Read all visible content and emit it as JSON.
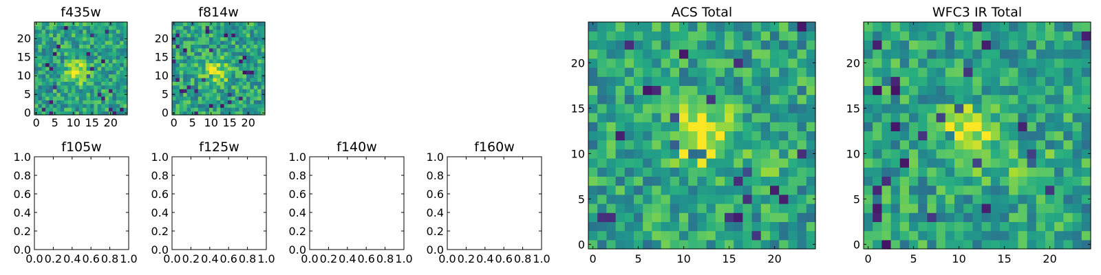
{
  "chart_data": [
    {
      "type": "heatmap",
      "title": "f435w",
      "xlabel": "",
      "ylabel": "",
      "xlim": [
        -0.5,
        24.5
      ],
      "ylim": [
        -0.5,
        24.5
      ],
      "xticks": [
        "0",
        "5",
        "10",
        "15",
        "20"
      ],
      "yticks": [
        "0",
        "5",
        "10",
        "15",
        "20"
      ],
      "grid_size": [
        25,
        25
      ],
      "colormap": "viridis",
      "feature": "bright source near x=11, y=11"
    },
    {
      "type": "heatmap",
      "title": "f814w",
      "xlabel": "",
      "ylabel": "",
      "xlim": [
        -0.5,
        24.5
      ],
      "ylim": [
        -0.5,
        24.5
      ],
      "xticks": [
        "0",
        "5",
        "10",
        "15",
        "20"
      ],
      "yticks": [
        "0",
        "5",
        "10",
        "15",
        "20"
      ],
      "grid_size": [
        25,
        25
      ],
      "colormap": "viridis",
      "feature": "bright source near x=11, y=11"
    },
    {
      "type": "heatmap",
      "title": "f105w",
      "empty": true,
      "xlim": [
        0,
        1
      ],
      "ylim": [
        0,
        1
      ],
      "xticks": [
        "0.0",
        "0.2",
        "0.4",
        "0.6",
        "0.8",
        "1.0"
      ],
      "yticks": [
        "0.0",
        "0.2",
        "0.4",
        "0.6",
        "0.8",
        "1.0"
      ]
    },
    {
      "type": "heatmap",
      "title": "f125w",
      "empty": true,
      "xlim": [
        0,
        1
      ],
      "ylim": [
        0,
        1
      ],
      "xticks": [
        "0.0",
        "0.2",
        "0.4",
        "0.6",
        "0.8",
        "1.0"
      ],
      "yticks": [
        "0.0",
        "0.2",
        "0.4",
        "0.6",
        "0.8",
        "1.0"
      ]
    },
    {
      "type": "heatmap",
      "title": "f140w",
      "empty": true,
      "xlim": [
        0,
        1
      ],
      "ylim": [
        0,
        1
      ],
      "xticks": [
        "0.0",
        "0.2",
        "0.4",
        "0.6",
        "0.8",
        "1.0"
      ],
      "yticks": [
        "0.0",
        "0.2",
        "0.4",
        "0.6",
        "0.8",
        "1.0"
      ]
    },
    {
      "type": "heatmap",
      "title": "f160w",
      "empty": true,
      "xlim": [
        0,
        1
      ],
      "ylim": [
        0,
        1
      ],
      "xticks": [
        "0.0",
        "0.2",
        "0.4",
        "0.6",
        "0.8",
        "1.0"
      ],
      "yticks": [
        "0.0",
        "0.2",
        "0.4",
        "0.6",
        "0.8",
        "1.0"
      ]
    },
    {
      "type": "heatmap",
      "title": "ACS Total",
      "xlabel": "",
      "ylabel": "",
      "xlim": [
        -0.5,
        24.5
      ],
      "ylim": [
        -0.5,
        24.5
      ],
      "xticks": [
        "0",
        "5",
        "10",
        "15",
        "20"
      ],
      "yticks": [
        "0",
        "5",
        "10",
        "15",
        "20"
      ],
      "grid_size": [
        25,
        25
      ],
      "colormap": "viridis",
      "feature": "bright source near x=12, y=12"
    },
    {
      "type": "heatmap",
      "title": "WFC3 IR Total",
      "xlabel": "",
      "ylabel": "",
      "xlim": [
        -0.5,
        24.5
      ],
      "ylim": [
        -0.5,
        24.5
      ],
      "xticks": [
        "0",
        "5",
        "10",
        "15",
        "20"
      ],
      "yticks": [
        "0",
        "5",
        "10",
        "15",
        "20"
      ],
      "grid_size": [
        25,
        25
      ],
      "colormap": "viridis",
      "feature": "bright source near x=11, y=12; secondary near x=18, y=8"
    }
  ]
}
